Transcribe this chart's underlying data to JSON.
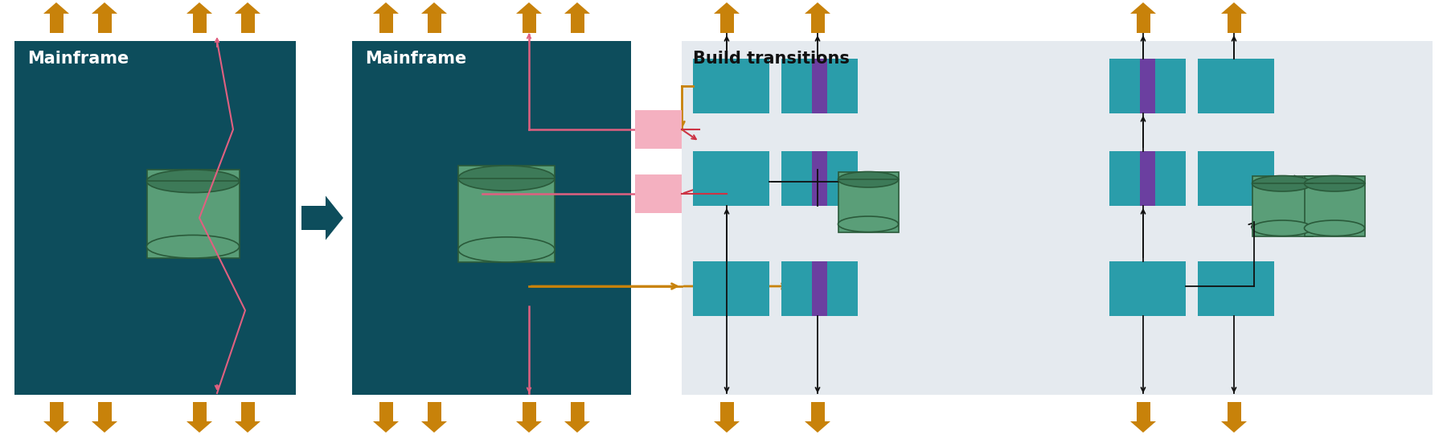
{
  "bg_color": "#ffffff",
  "mainframe_bg": "#0d4d5c",
  "teal_box": "#2a9daa",
  "purple_stripe": "#6b3fa0",
  "green_cylinder_body": "#5a9e78",
  "green_cylinder_top": "#3d7a58",
  "green_cylinder_edge": "#2a5a3a",
  "arrow_orange": "#c8820a",
  "arrow_pink": "#e06080",
  "arrow_red": "#cc3344",
  "pink_box": "#f4b0c0",
  "transition_bg": "#e5eaef",
  "title1": "Mainframe",
  "title2": "Mainframe",
  "title3": "Build transitions",
  "title_color": "#ffffff",
  "title3_color": "#111111",
  "big_arrow_color": "#0d4d5c"
}
